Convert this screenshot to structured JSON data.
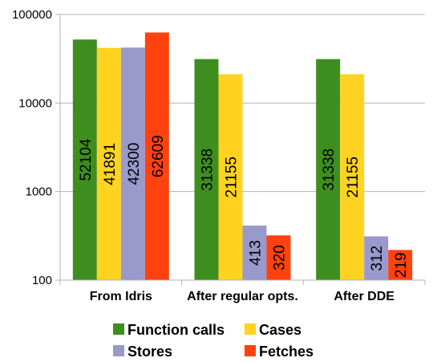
{
  "chart_data": {
    "type": "bar",
    "title": "",
    "xlabel": "",
    "ylabel": "",
    "yscale": "log",
    "ylim": [
      100,
      100000
    ],
    "yticks": [
      "100",
      "1000",
      "10000",
      "100000"
    ],
    "grid": true,
    "legend_position": "bottom",
    "categories": [
      "From Idris",
      "After regular opts.",
      "After DDE"
    ],
    "series": [
      {
        "name": "Function calls",
        "color": "#3e8e1f",
        "values": [
          52104,
          31338,
          31338
        ],
        "labels": [
          "52104",
          "31338",
          "31338"
        ]
      },
      {
        "name": "Cases",
        "color": "#ffd320",
        "values": [
          41891,
          21155,
          21155
        ],
        "labels": [
          "41891",
          "21155",
          "21155"
        ]
      },
      {
        "name": "Stores",
        "color": "#9999cc",
        "values": [
          42300,
          413,
          312
        ],
        "labels": [
          "42300",
          "413",
          "312"
        ]
      },
      {
        "name": "Fetches",
        "color": "#ff420e",
        "values": [
          62609,
          320,
          219
        ],
        "labels": [
          "62609",
          "320",
          "219"
        ]
      }
    ]
  }
}
